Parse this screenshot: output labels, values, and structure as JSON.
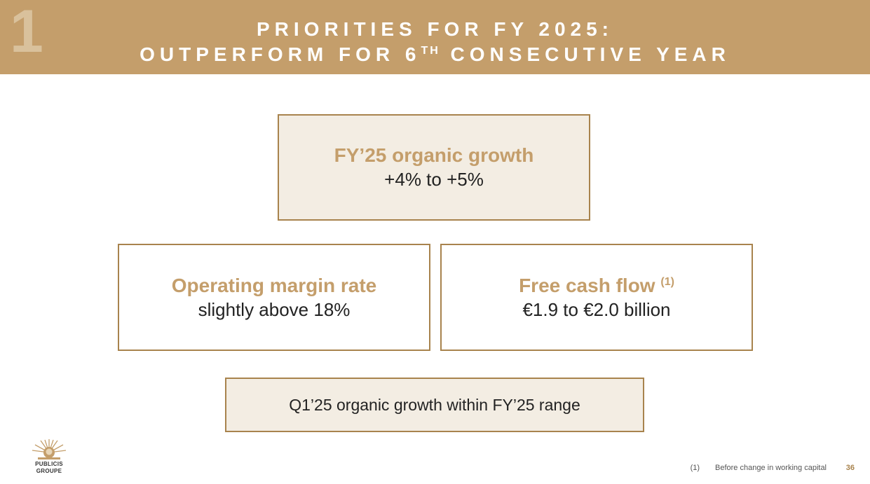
{
  "header": {
    "section_number": "1",
    "title_line1": "PRIORITIES FOR FY 2025:",
    "title_line2_pre": "OUTPERFORM FOR 6",
    "title_line2_sup": "TH",
    "title_line2_post": " CONSECUTIVE YEAR"
  },
  "boxes": {
    "organic_growth": {
      "title": "FY’25 organic growth",
      "value": "+4% to +5%"
    },
    "operating_margin": {
      "title": "Operating margin rate",
      "value": "slightly above 18%"
    },
    "free_cash_flow": {
      "title": "Free cash flow",
      "footnote_ref": "(1)",
      "value": "€1.9 to €2.0 billion"
    },
    "q1": {
      "text": "Q1’25 organic growth within FY’25 range"
    }
  },
  "logo": {
    "line1": "PUBLICIS",
    "line2": "GROUPE"
  },
  "footer": {
    "footnote_mark": "(1)",
    "footnote_text": "Before change in working capital",
    "page_number": "36"
  },
  "colors": {
    "gold": "#c49e6b",
    "border": "#a8834d",
    "fill": "#f3ede3"
  }
}
